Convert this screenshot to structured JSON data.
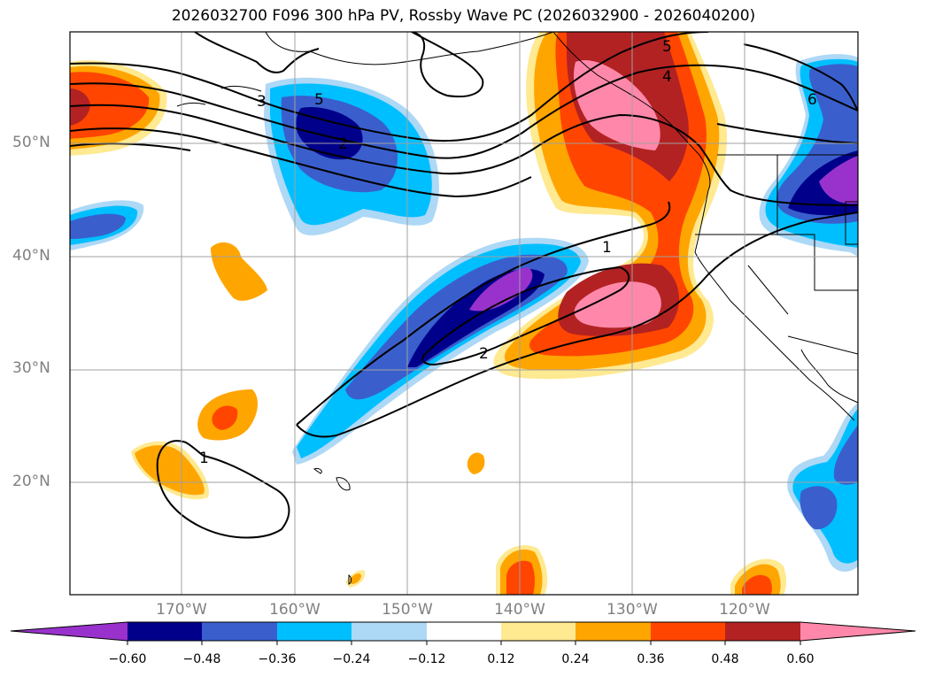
{
  "title": "2026032700 F096 300 hPa PV, Rossby Wave PC (2026032900 - 2026040200)",
  "map": {
    "lat_ticks": [
      "50°N",
      "40°N",
      "30°N",
      "20°N"
    ],
    "lon_ticks": [
      "170°W",
      "160°W",
      "150°W",
      "140°W",
      "130°W",
      "120°W"
    ],
    "contour_labels": [
      "5",
      "4",
      "3",
      "2",
      "6",
      "5",
      "1",
      "2",
      "1"
    ]
  },
  "colorbar": {
    "ticks": [
      "−0.60",
      "−0.48",
      "−0.36",
      "−0.24",
      "−0.12",
      "0.12",
      "0.24",
      "0.36",
      "0.48",
      "0.60"
    ],
    "colors": [
      "#9932cc",
      "#00008b",
      "#3a5fcd",
      "#00bfff",
      "#add8f6",
      "#ffffff",
      "#ffe991",
      "#ffa500",
      "#ff4500",
      "#b22222",
      "#ff88aa",
      "#ff88aa"
    ]
  },
  "legend_colors": {
    "neg_extreme": "#9932cc",
    "neg_strong": "#00008b",
    "neg_med": "#3a5fcd",
    "neg_weak": "#00bfff",
    "neg_faint": "#add8f6",
    "pos_faint": "#ffe991",
    "pos_weak": "#ffa500",
    "pos_med": "#ff4500",
    "pos_strong": "#b22222",
    "pos_extreme": "#ff88aa"
  }
}
